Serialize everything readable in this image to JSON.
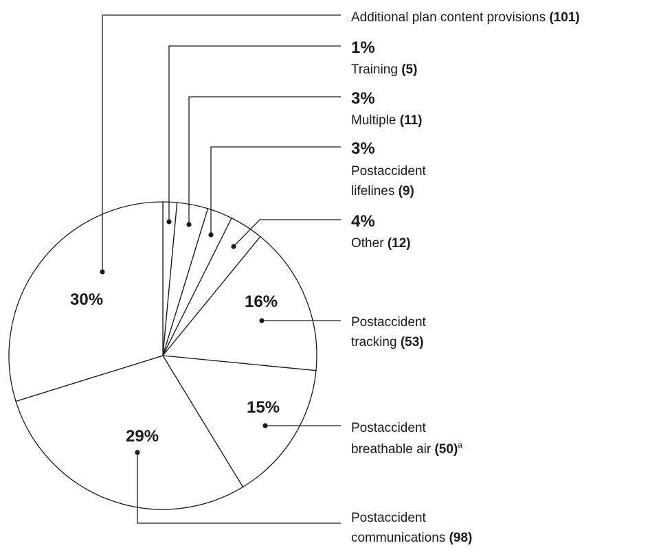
{
  "chart_data": {
    "type": "pie",
    "title": "",
    "slices": [
      {
        "label": "Training",
        "count": 5,
        "percent": 1
      },
      {
        "label": "Multiple",
        "count": 11,
        "percent": 3
      },
      {
        "label": "Postaccident lifelines",
        "count": 9,
        "percent": 3
      },
      {
        "label": "Other",
        "count": 12,
        "percent": 4
      },
      {
        "label": "Postaccident tracking",
        "count": 53,
        "percent": 16
      },
      {
        "label": "Postaccident breathable air",
        "count": 50,
        "percent": 15,
        "footnote": "a"
      },
      {
        "label": "Postaccident communications",
        "count": 98,
        "percent": 29
      },
      {
        "label": "Additional plan content provisions",
        "count": 101,
        "percent": 30
      }
    ]
  },
  "labels": {
    "additional": {
      "name": "Additional plan content provisions",
      "count": "(101)",
      "pct": "30%"
    },
    "training": {
      "pct": "1%",
      "name": "Training",
      "count": "(5)"
    },
    "multiple": {
      "pct": "3%",
      "name": "Multiple",
      "count": "(11)"
    },
    "lifelines": {
      "pct": "3%",
      "line1": "Postaccident",
      "line2": "lifelines",
      "count": "(9)"
    },
    "other": {
      "pct": "4%",
      "name": "Other",
      "count": "(12)"
    },
    "tracking": {
      "pct": "16%",
      "line1": "Postaccident",
      "line2": "tracking",
      "count": "(53)"
    },
    "air": {
      "pct": "15%",
      "line1": "Postaccident",
      "line2": "breathable air",
      "count": "(50)",
      "footnote": "a"
    },
    "comms": {
      "pct": "29%",
      "line1": "Postaccident",
      "line2": "communications",
      "count": "(98)"
    }
  }
}
